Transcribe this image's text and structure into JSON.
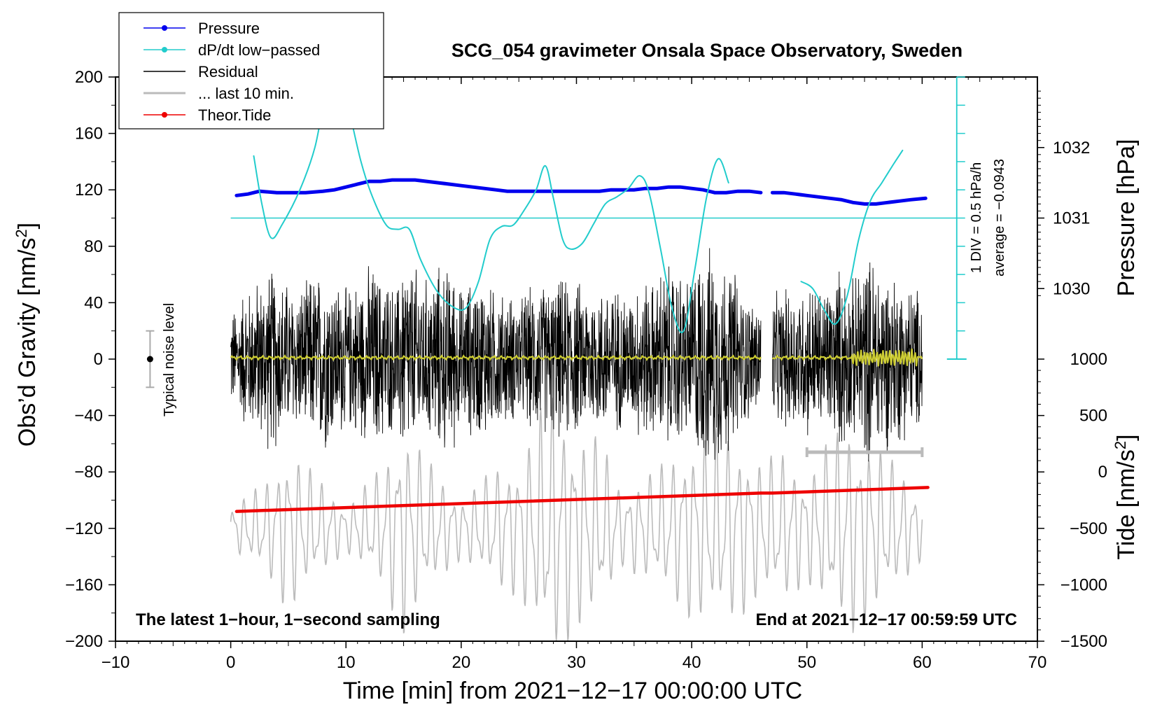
{
  "chart_data": {
    "type": "line",
    "title": "SCG_054 gravimeter Onsala Space Observatory, Sweden",
    "xlabel": "Time [min] from 2021−12−17 00:00:00 UTC",
    "ylabel_left": "Obs’d Gravity [nm/s",
    "ylabel_left_sup": "2",
    "ylabel_left_close": "]",
    "ylabel_right_pressure": "Pressure [hPa]",
    "ylabel_right_tide": "Tide [nm/s",
    "ylabel_right_tide_sup": "2",
    "ylabel_right_tide_close": "]",
    "xlim": [
      -10,
      70
    ],
    "ylim_gravity": [
      -200,
      200
    ],
    "x_ticks": [
      -10,
      0,
      10,
      20,
      30,
      40,
      50,
      60,
      70
    ],
    "x_tick_labels": [
      "−10",
      "0",
      "10",
      "20",
      "30",
      "40",
      "50",
      "60",
      "70"
    ],
    "y_ticks_gravity": [
      200,
      160,
      120,
      80,
      40,
      0,
      -40,
      -80,
      -120,
      -160,
      -200
    ],
    "y_tick_labels_gravity": [
      "200",
      "160",
      "120",
      "80",
      "40",
      "0",
      "−40",
      "−80",
      "−120",
      "−160",
      "−200"
    ],
    "pressure_ticks": [
      1032,
      1031,
      1030
    ],
    "pressure_tick_labels": [
      "1032",
      "1031",
      "1030"
    ],
    "pressure_unit_per_gravity": 0.02,
    "pressure_ref": 1031,
    "pressure_ref_gravity": 100,
    "tide_ticks": [
      1000,
      500,
      0,
      -500,
      -1000,
      -1500
    ],
    "tide_tick_labels": [
      "1000",
      "500",
      "0",
      "−500",
      "−1000",
      "−1500"
    ],
    "tide_lim": [
      -1500,
      1000
    ],
    "tide_gravity_range": [
      -200,
      0
    ],
    "legend": [
      {
        "label": "Pressure",
        "color": "#0000ee",
        "marker": true
      },
      {
        "label": "dP/dt low−passed",
        "color": "#22cccc",
        "marker": true
      },
      {
        "label": "Residual",
        "color": "#000000",
        "marker": false
      },
      {
        "label": "... last 10 min.",
        "color": "#bbbbbb",
        "marker": false
      },
      {
        "label": "Theor.Tide",
        "color": "#ee0000",
        "marker": true
      }
    ],
    "noise_label": "Typical noise level",
    "noise_bar": {
      "x": -7,
      "center": 0,
      "low": -20,
      "high": 20
    },
    "dpdt_scale_label": "1 DIV = 0.5 hPa/h",
    "dpdt_average_label": "average = −0.0943",
    "dpdt_scale_bar": {
      "x": 63,
      "top": 200,
      "bottom": 0,
      "ticks": [
        200,
        180,
        160,
        140,
        120,
        100,
        80,
        60,
        40,
        20,
        0
      ]
    },
    "last10_bar": {
      "x_start": 50,
      "x_end": 60,
      "y": -66
    },
    "note_left": "The latest 1−hour, 1−second sampling",
    "note_right": "End at 2021−12−17 00:59:59 UTC",
    "series": [
      {
        "name": "Pressure",
        "color": "#0000ee",
        "x": [
          0.5,
          1.5,
          2.5,
          4,
          5,
          6.5,
          8,
          9,
          10,
          11,
          12,
          13,
          14,
          15,
          16,
          17,
          18,
          19,
          20,
          21,
          22,
          23,
          24,
          25,
          26,
          27,
          28,
          29,
          30,
          31,
          32,
          33,
          34,
          35,
          36,
          37,
          38,
          39,
          40,
          41,
          42,
          43,
          44,
          45,
          46
        ],
        "values": [
          116,
          117,
          119,
          118,
          118,
          118,
          119,
          120,
          122,
          124,
          126,
          126,
          127,
          127,
          127,
          126,
          125,
          124,
          123,
          122,
          121,
          120,
          119,
          119,
          119,
          119,
          119,
          119,
          119,
          119,
          119,
          120,
          120,
          120,
          121,
          121,
          122,
          122,
          121,
          120,
          118,
          118,
          119,
          119,
          118
        ]
      },
      {
        "name": "Pressure (after gap)",
        "color": "#0000ee",
        "x": [
          47,
          48,
          49,
          50,
          51,
          52,
          53,
          54,
          55,
          56,
          57,
          58,
          59,
          60.3
        ],
        "values": [
          118,
          118,
          117,
          116,
          115,
          114,
          113,
          111,
          110,
          110,
          111,
          112,
          113,
          114
        ]
      },
      {
        "name": "dP/dt low-passed",
        "color": "#22cccc",
        "x": [
          2,
          2.7,
          3.5,
          4.5,
          6,
          7.3,
          8.3,
          9.3,
          10.3,
          11.3,
          12.3,
          13.5,
          14.5,
          15.5,
          16.5,
          18,
          19.5,
          20.5,
          21.5,
          22.5,
          23.5,
          24.5,
          25.5,
          26.5,
          27.3,
          28,
          28.8,
          29.5,
          30.5,
          31.5,
          32.5,
          33.5,
          34.5,
          35.5,
          36.3,
          37.3,
          38.3,
          39.3,
          40.3,
          41.3,
          42.3,
          43.2
        ],
        "values": [
          144,
          110,
          86,
          96,
          120,
          150,
          190,
          205,
          175,
          140,
          115,
          95,
          92,
          92,
          70,
          47,
          36,
          37,
          55,
          85,
          94,
          95,
          106,
          120,
          137,
          114,
          85,
          78,
          82,
          96,
          110,
          115,
          121,
          130,
          118,
          78,
          36,
          20,
          65,
          115,
          142,
          125
        ]
      },
      {
        "name": "dP/dt low-passed (after gap)",
        "color": "#22cccc",
        "x": [
          49.5,
          50.5,
          51.5,
          52.5,
          53.5,
          54.5,
          55.5,
          56.5,
          57.5,
          58.3
        ],
        "values": [
          55,
          50,
          35,
          25,
          45,
          85,
          112,
          125,
          138,
          148
        ]
      },
      {
        "name": "Theor.Tide",
        "color": "#ee0000",
        "x": [
          0.5,
          46,
          47,
          60.5
        ],
        "values": [
          -108,
          -95,
          -95,
          -91
        ]
      }
    ],
    "pressure_ref_line_gravity": 100,
    "residual_segments": [
      {
        "x_start": 0,
        "x_end": 46,
        "envelope": [
          40,
          55,
          62,
          70,
          62,
          55,
          58,
          66,
          70,
          60,
          55,
          62,
          72,
          65,
          58,
          78,
          70,
          62,
          72,
          70,
          55,
          60,
          62,
          55,
          50,
          48,
          55,
          58,
          58,
          62,
          60,
          55,
          55,
          58,
          55,
          50,
          62,
          60,
          72,
          70,
          65,
          80,
          85,
          80,
          70,
          50,
          45
        ]
      },
      {
        "x_start": 47,
        "x_end": 60,
        "envelope": [
          50,
          55,
          55,
          60,
          55,
          60,
          70,
          62,
          78,
          80,
          70,
          65,
          60,
          55
        ]
      }
    ],
    "residual_mean_line": {
      "color": "#cccc33",
      "x_start": 0,
      "x_end": 60,
      "level": 1,
      "wiggle_x_start": 54,
      "wiggle_x_end": 59.5,
      "wiggle_amp": 5
    },
    "last10_trace": {
      "color": "#bbbbbb",
      "x_start": 0,
      "x_end": 60,
      "center": -120,
      "envelope_x": [
        0,
        3,
        5,
        8,
        10,
        13,
        15,
        18,
        20,
        23,
        25,
        27,
        28,
        30,
        32,
        34,
        36,
        38,
        40,
        42,
        44,
        46,
        48,
        50,
        52,
        54,
        56,
        58,
        60
      ],
      "envelope": [
        15,
        30,
        55,
        30,
        15,
        40,
        70,
        35,
        20,
        40,
        45,
        80,
        90,
        65,
        60,
        25,
        35,
        45,
        60,
        65,
        60,
        45,
        50,
        35,
        60,
        70,
        55,
        40,
        20
      ]
    }
  }
}
